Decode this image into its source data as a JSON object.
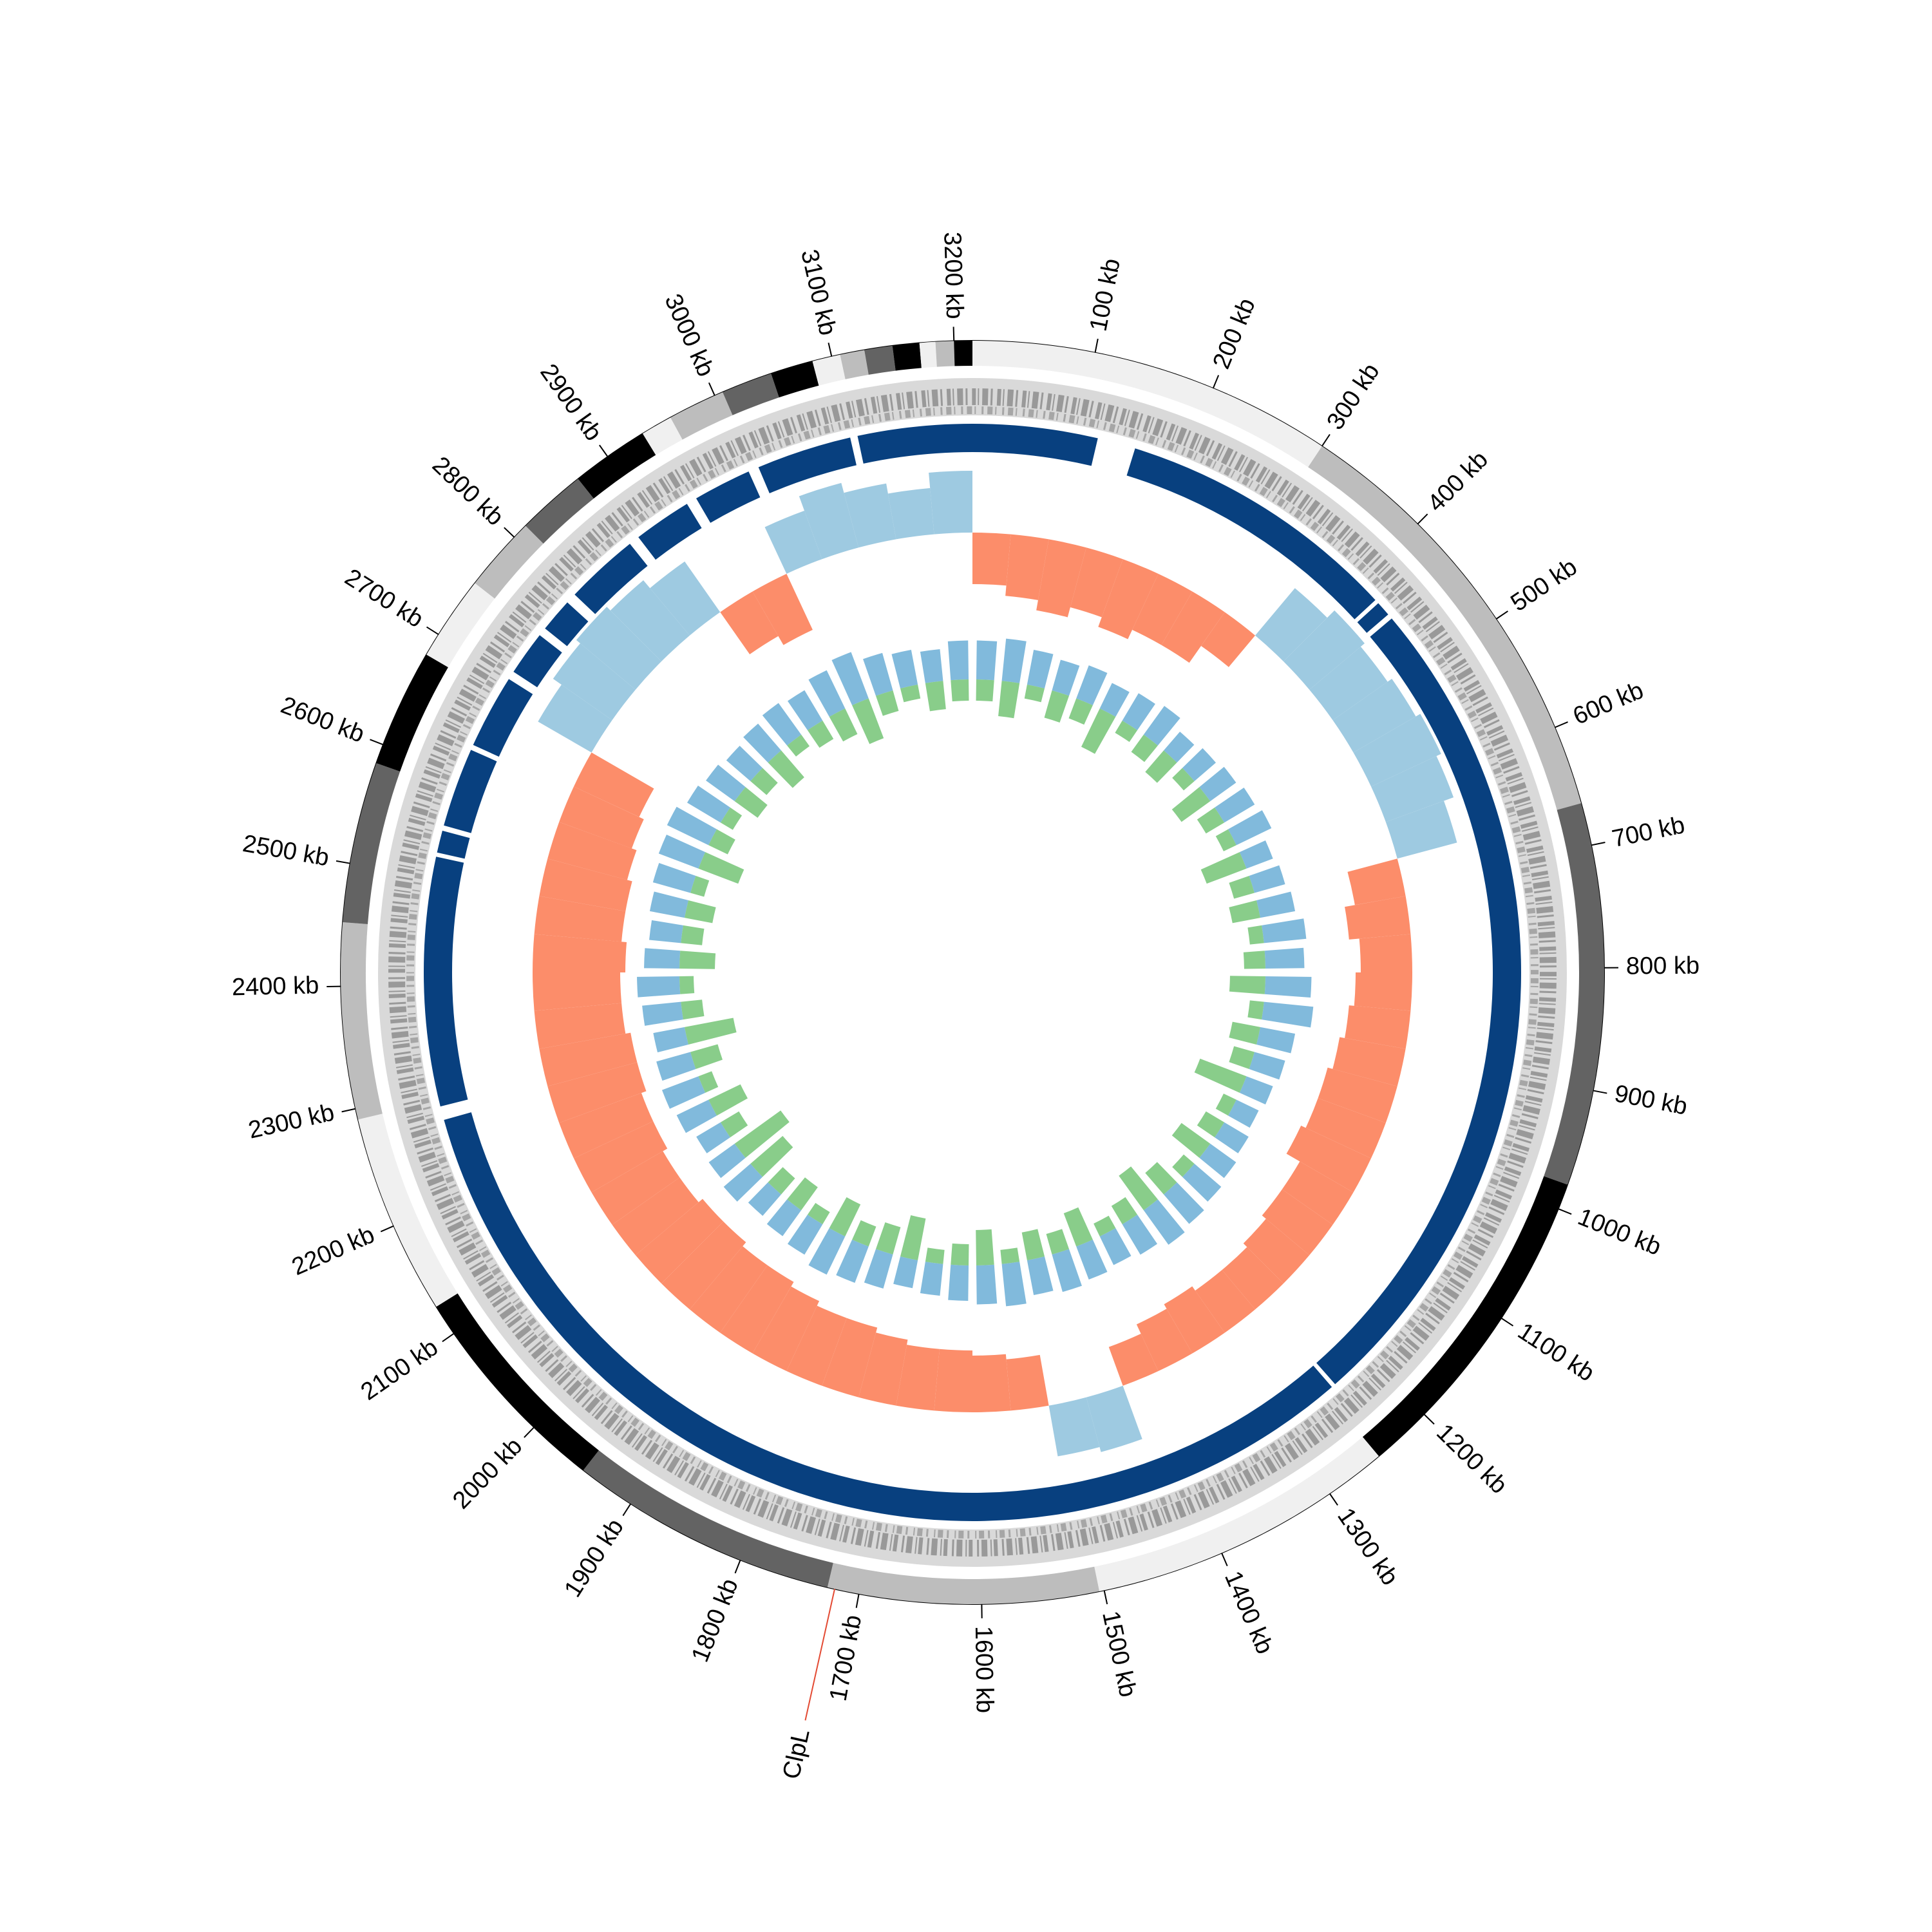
{
  "chart_data": {
    "type": "circos",
    "xlim": [
      0,
      3215
    ],
    "xticks": [
      {
        "value": 100,
        "label": "100 kb"
      },
      {
        "value": 200,
        "label": "200 kb"
      },
      {
        "value": 300,
        "label": "300 kb"
      },
      {
        "value": 400,
        "label": "400 kb"
      },
      {
        "value": 500,
        "label": "500 kb"
      },
      {
        "value": 600,
        "label": "600 kb"
      },
      {
        "value": 700,
        "label": "700 kb"
      },
      {
        "value": 800,
        "label": "800 kb"
      },
      {
        "value": 900,
        "label": "900 kb"
      },
      {
        "value": 1000,
        "label": "1000 kb"
      },
      {
        "value": 1100,
        "label": "1100 kb"
      },
      {
        "value": 1200,
        "label": "1200 kb"
      },
      {
        "value": 1300,
        "label": "1300 kb"
      },
      {
        "value": 1400,
        "label": "1400 kb"
      },
      {
        "value": 1500,
        "label": "1500 kb"
      },
      {
        "value": 1600,
        "label": "1600 kb"
      },
      {
        "value": 1700,
        "label": "1700 kb"
      },
      {
        "value": 1800,
        "label": "1800 kb"
      },
      {
        "value": 1900,
        "label": "1900 kb"
      },
      {
        "value": 2000,
        "label": "2000 kb"
      },
      {
        "value": 2100,
        "label": "2100 kb"
      },
      {
        "value": 2200,
        "label": "2200 kb"
      },
      {
        "value": 2300,
        "label": "2300 kb"
      },
      {
        "value": 2400,
        "label": "2400 kb"
      },
      {
        "value": 2500,
        "label": "2500 kb"
      },
      {
        "value": 2600,
        "label": "2600 kb"
      },
      {
        "value": 2700,
        "label": "2700 kb"
      },
      {
        "value": 2800,
        "label": "2800 kb"
      },
      {
        "value": 2900,
        "label": "2900 kb"
      },
      {
        "value": 3000,
        "label": "3000 kb"
      },
      {
        "value": 3100,
        "label": "3100 kb"
      },
      {
        "value": 3200,
        "label": "3200 kb"
      }
    ],
    "tracks": [
      {
        "type": "contigs",
        "segments": [
          {
            "start": 0,
            "end": 300,
            "color": "#f0f0f0"
          },
          {
            "start": 300,
            "end": 665,
            "color": "#bdbdbd"
          },
          {
            "start": 665,
            "end": 979,
            "color": "#636363"
          },
          {
            "start": 979,
            "end": 1250,
            "color": "#000000"
          },
          {
            "start": 1250,
            "end": 1504,
            "color": "#f0f0f0"
          },
          {
            "start": 1504,
            "end": 1726,
            "color": "#bdbdbd"
          },
          {
            "start": 1726,
            "end": 1947,
            "color": "#636363"
          },
          {
            "start": 1947,
            "end": 2126,
            "color": "#000000"
          },
          {
            "start": 2126,
            "end": 2291,
            "color": "#f0f0f0"
          },
          {
            "start": 2291,
            "end": 2452,
            "color": "#bdbdbd"
          },
          {
            "start": 2452,
            "end": 2584,
            "color": "#636363"
          },
          {
            "start": 2584,
            "end": 2681,
            "color": "#000000"
          },
          {
            "start": 2681,
            "end": 2751,
            "color": "#f0f0f0"
          },
          {
            "start": 2751,
            "end": 2813,
            "color": "#bdbdbd"
          },
          {
            "start": 2813,
            "end": 2870,
            "color": "#636363"
          },
          {
            "start": 2870,
            "end": 2934,
            "color": "#000000"
          },
          {
            "start": 2934,
            "end": 2960,
            "color": "#f0f0f0"
          },
          {
            "start": 2960,
            "end": 3007,
            "color": "#bdbdbd"
          },
          {
            "start": 3007,
            "end": 3049,
            "color": "#636363"
          },
          {
            "start": 3049,
            "end": 3084,
            "color": "#000000"
          },
          {
            "start": 3084,
            "end": 3107,
            "color": "#f0f0f0"
          },
          {
            "start": 3107,
            "end": 3127,
            "color": "#bdbdbd"
          },
          {
            "start": 3127,
            "end": 3150,
            "color": "#636363"
          },
          {
            "start": 3150,
            "end": 3172,
            "color": "#000000"
          },
          {
            "start": 3172,
            "end": 3185,
            "color": "#f0f0f0"
          },
          {
            "start": 3185,
            "end": 3200,
            "color": "#bdbdbd"
          },
          {
            "start": 3200,
            "end": 3215,
            "color": "#000000"
          }
        ]
      },
      {
        "type": "blocks",
        "color": "#08407f",
        "segments": [
          {
            "start": 0,
            "end": 118
          },
          {
            "start": 154,
            "end": 422
          },
          {
            "start": 426,
            "end": 440
          },
          {
            "start": 445,
            "end": 1238
          },
          {
            "start": 1242,
            "end": 2272
          },
          {
            "start": 2285,
            "end": 2520
          },
          {
            "start": 2524,
            "end": 2545
          },
          {
            "start": 2550,
            "end": 2625
          },
          {
            "start": 2630,
            "end": 2700
          },
          {
            "start": 2708,
            "end": 2750
          },
          {
            "start": 2758,
            "end": 2790
          },
          {
            "start": 2800,
            "end": 2870
          },
          {
            "start": 2880,
            "end": 2935
          },
          {
            "start": 2945,
            "end": 3000
          },
          {
            "start": 3010,
            "end": 3100
          },
          {
            "start": 3107,
            "end": 3215
          }
        ]
      },
      {
        "type": "skew",
        "ylim": [
          -1,
          1
        ],
        "positive_color": "#9ecae1",
        "negative_color": "#fc8d6a",
        "values": [
          -0.5,
          -0.6,
          -0.7,
          -0.6,
          -0.7,
          -0.6,
          -0.6,
          -0.4,
          0.6,
          0.7,
          0.65,
          0.7,
          0.75,
          0.7,
          0.6,
          -0.5,
          -0.6,
          -0.5,
          -0.55,
          -0.6,
          -0.65,
          -0.7,
          -0.7,
          -0.75,
          -0.6,
          -0.6,
          -0.55,
          -0.5,
          -0.5,
          -0.55,
          -0.5,
          -0.4,
          0.55,
          0.5,
          -0.5,
          -0.55,
          -0.6,
          -0.6,
          -0.65,
          -0.7,
          -0.7,
          -0.75,
          -0.8,
          -0.8,
          -0.85,
          -0.85,
          -0.8,
          -0.8,
          -0.85,
          -0.85,
          -0.9,
          -0.9,
          -0.85,
          -0.85,
          -0.9,
          -0.85,
          -0.85,
          -0.8,
          -0.75,
          -0.7,
          0.6,
          0.7,
          0.75,
          0.7,
          0.6,
          -0.5,
          -0.6,
          0.5,
          0.65,
          0.55,
          0.45,
          0.6
        ]
      },
      {
        "type": "spikes",
        "ylim": [
          -1,
          1
        ],
        "series": [
          {
            "color": "#6baed6",
            "values": [
              0.55,
              0.6,
              0.5,
              0.45,
              0.5,
              0.4,
              0.45,
              0.5,
              0.35,
              0.4,
              0.45,
              0.5,
              0.55,
              0.4,
              0.45,
              0.5,
              0.6,
              0.55,
              0.65,
              0.7,
              0.5,
              0.45,
              0.4,
              0.35,
              0.4,
              0.45,
              0.5,
              0.55,
              0.6,
              0.5,
              0.45,
              0.5,
              0.55,
              0.5,
              0.6,
              0.55,
              0.5,
              0.45,
              0.4,
              0.5,
              0.55,
              0.6,
              0.5,
              0.45,
              0.4,
              0.5,
              0.45,
              0.4,
              0.5,
              0.55,
              0.5,
              0.45,
              0.55,
              0.6,
              0.5,
              0.45,
              0.5,
              0.55,
              0.6,
              0.65,
              0.55,
              0.5,
              0.45,
              0.5,
              0.55,
              0.5,
              0.6,
              0.7,
              0.55,
              0.5,
              0.45,
              0.55
            ]
          },
          {
            "color": "#74c476",
            "values": [
              -0.3,
              -0.5,
              -0.2,
              -0.4,
              -0.3,
              -0.6,
              -0.2,
              -0.3,
              -0.4,
              -0.2,
              -0.5,
              -0.3,
              -0.2,
              -0.6,
              -0.3,
              -0.4,
              -0.2,
              -0.3,
              -0.5,
              -0.2,
              -0.4,
              -0.3,
              -0.7,
              -0.2,
              -0.3,
              -0.5,
              -0.2,
              -0.4,
              -0.6,
              -0.3,
              -0.2,
              -0.5,
              -0.3,
              -0.4,
              -0.2,
              -0.5,
              -0.3,
              -0.2,
              -0.6,
              -0.4,
              -0.3,
              -0.5,
              -0.2,
              -0.4,
              -0.3,
              -0.6,
              -0.8,
              -0.3,
              -0.5,
              -0.2,
              -0.4,
              -0.7,
              -0.3,
              -0.2,
              -0.5,
              -0.3,
              -0.4,
              -0.2,
              -0.6,
              -0.3,
              -0.2,
              -0.4,
              -0.3,
              -0.5,
              -0.2,
              -0.3,
              -0.4,
              -0.6,
              -0.3,
              -0.2,
              -0.4,
              -0.3
            ]
          }
        ]
      }
    ],
    "annotations": [
      {
        "label": "ClpL",
        "x": 1720,
        "color": "#2171b5",
        "line_color": "#e34a33"
      }
    ]
  }
}
